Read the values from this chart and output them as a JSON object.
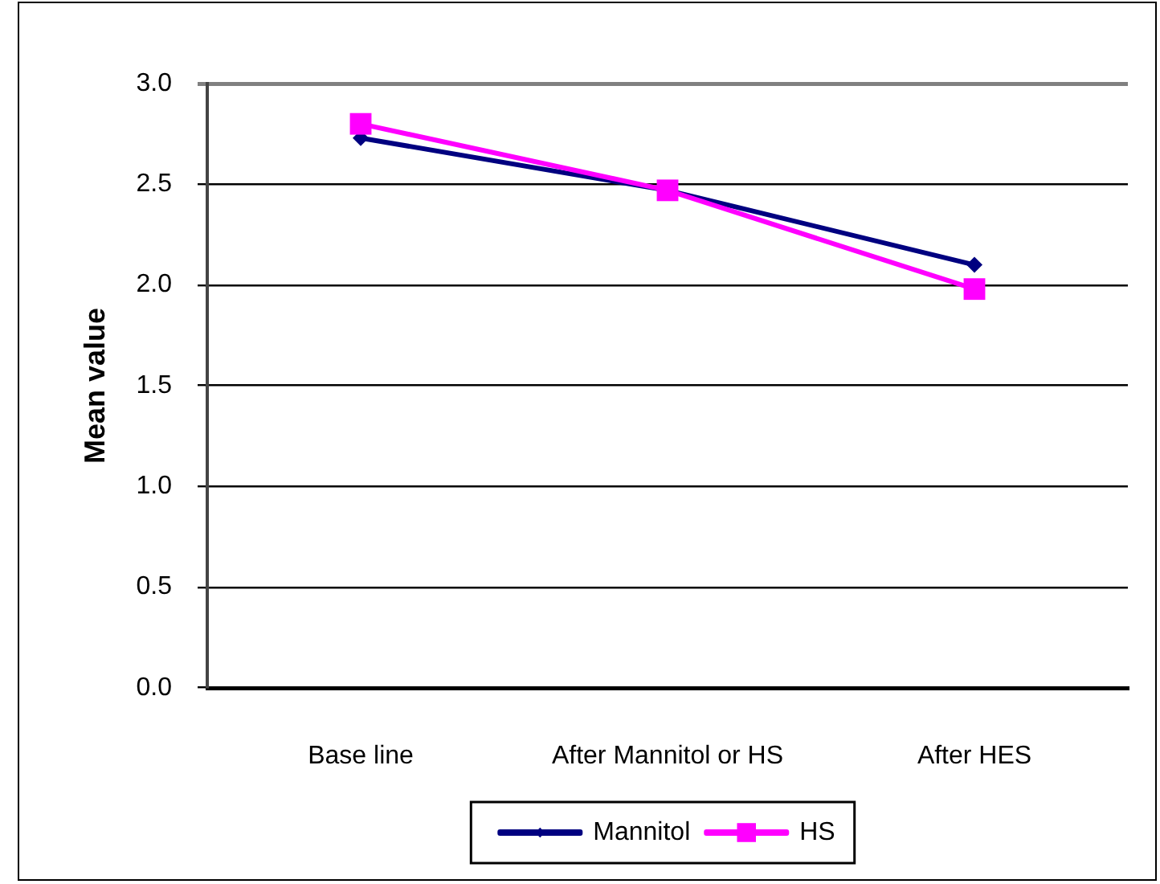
{
  "chart_data": {
    "type": "line",
    "ylabel": "Mean value",
    "categories": [
      "Base line",
      "After Mannitol or HS",
      "After HES"
    ],
    "series": [
      {
        "name": "Mannitol",
        "color": "#000080",
        "marker": "diamond",
        "values": [
          2.73,
          2.47,
          2.1
        ]
      },
      {
        "name": "HS",
        "color": "#ff00ff",
        "marker": "square",
        "values": [
          2.8,
          2.47,
          1.98
        ]
      }
    ],
    "ylim": [
      0,
      3
    ],
    "yticks": [
      {
        "value": 0,
        "label": "0.0"
      },
      0.5,
      {
        "value": 1,
        "label": "1.0"
      },
      1.5,
      {
        "value": 2,
        "label": "2.0"
      },
      2.5,
      {
        "value": 3,
        "label": "3.0"
      }
    ],
    "grid": "y",
    "legend": "bottom"
  }
}
